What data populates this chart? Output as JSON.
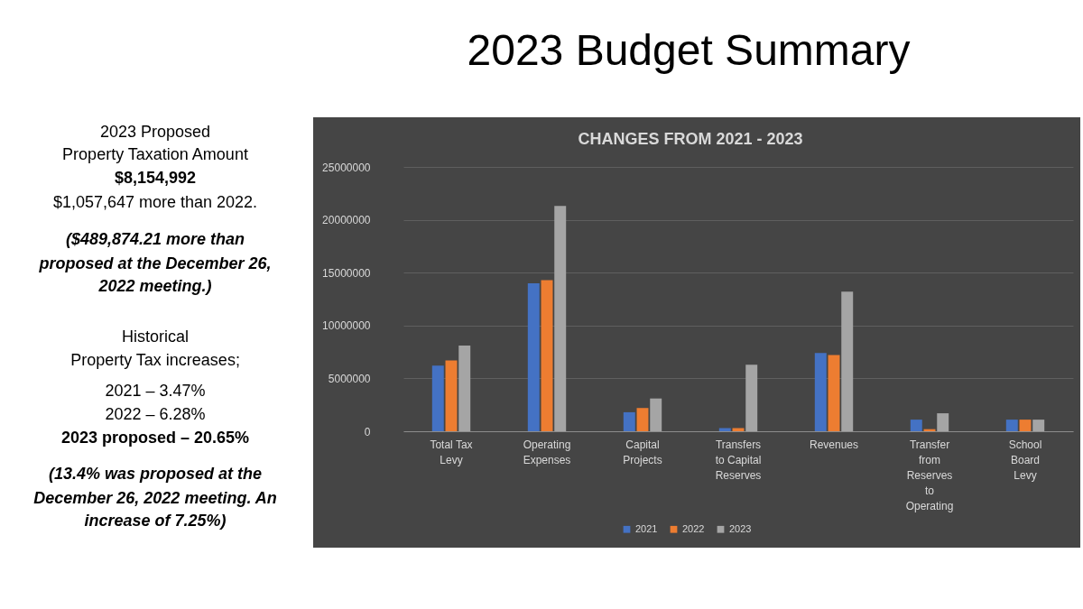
{
  "chart_data": {
    "type": "bar",
    "title": "2023 Budget Summary",
    "subtitle": "CHANGES FROM 2021 - 2023",
    "categories": [
      "Total Tax Levy",
      "Operating Expenses",
      "Capital Projects",
      "Transfers to Capital Reserves",
      "Revenues",
      "Transfer from Reserves to Operating",
      "School Board Levy"
    ],
    "series": [
      {
        "name": "2021",
        "color": "#4472c4",
        "values": [
          6200000,
          14000000,
          1800000,
          300000,
          7400000,
          1100000,
          1100000
        ]
      },
      {
        "name": "2022",
        "color": "#ed7d31",
        "values": [
          6700000,
          14300000,
          2200000,
          300000,
          7200000,
          200000,
          1100000
        ]
      },
      {
        "name": "2023",
        "color": "#a5a5a5",
        "values": [
          8100000,
          21300000,
          3100000,
          6300000,
          13200000,
          1700000,
          1100000
        ]
      }
    ],
    "ylim": [
      0,
      25000000
    ],
    "yticks": [
      0,
      5000000,
      10000000,
      15000000,
      20000000,
      25000000
    ],
    "grid": "y",
    "legend": "bottom",
    "annotations": [
      "2023 Proposed",
      "Property Taxation Amount",
      "$8,154,992",
      "$1,057,647 more than 2022.",
      "($489,874.21 more than",
      "proposed at the December 26,",
      "2022 meeting.)",
      "Historical",
      "Property Tax increases;",
      "2021 – 3.47%",
      "2022 – 6.28%",
      "2023 proposed – 20.65%",
      "(13.4% was proposed at the",
      "December 26, 2022 meeting. An",
      "increase of 7.25%)"
    ]
  }
}
